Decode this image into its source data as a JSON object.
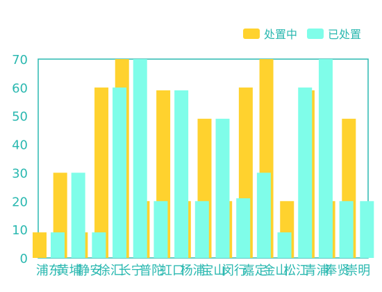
{
  "chart_data": {
    "type": "bar",
    "categories": [
      "浦东",
      "黄埔",
      "静安",
      "徐汇",
      "长宁",
      "普陀",
      "虹口",
      "杨浦",
      "宝山",
      "闵行",
      "嘉定",
      "金山",
      "松江",
      "青浦",
      "奉贤",
      "崇明"
    ],
    "series": [
      {
        "name": "处置中",
        "color": "#ffd22e",
        "values": [
          9,
          30,
          9,
          60,
          70,
          20,
          59,
          20,
          49,
          20,
          60,
          70,
          20,
          59,
          20,
          49
        ]
      },
      {
        "name": "已处置",
        "color": "#7ffde9",
        "values": [
          9,
          30,
          9,
          60,
          70,
          20,
          59,
          20,
          49,
          21,
          30,
          9,
          60,
          70,
          20,
          20
        ]
      }
    ],
    "ylim": [
      0,
      70
    ],
    "yticks": [
      "0",
      "10",
      "20",
      "30",
      "40",
      "50",
      "60",
      "70"
    ],
    "legend_position": "top-right",
    "axis_color": "#2ab8b0"
  }
}
